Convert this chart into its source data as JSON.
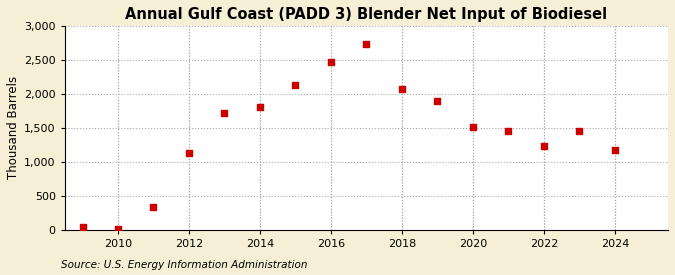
{
  "title": "Annual Gulf Coast (PADD 3) Blender Net Input of Biodiesel",
  "ylabel": "Thousand Barrels",
  "source": "Source: U.S. Energy Information Administration",
  "background_color": "#f5efd5",
  "plot_bg_color": "#ffffff",
  "marker_color": "#cc0000",
  "marker": "s",
  "marker_size": 4,
  "years": [
    2009,
    2010,
    2011,
    2012,
    2013,
    2014,
    2015,
    2016,
    2017,
    2018,
    2019,
    2020,
    2021,
    2022,
    2023,
    2024
  ],
  "values": [
    40,
    10,
    330,
    1130,
    1720,
    1800,
    2130,
    2470,
    2730,
    2070,
    1900,
    1510,
    1450,
    1240,
    1460,
    1170
  ],
  "ylim": [
    0,
    3000
  ],
  "xlim": [
    2008.5,
    2025.5
  ],
  "yticks": [
    0,
    500,
    1000,
    1500,
    2000,
    2500,
    3000
  ],
  "xticks": [
    2010,
    2012,
    2014,
    2016,
    2018,
    2020,
    2022,
    2024
  ],
  "title_fontsize": 10.5,
  "label_fontsize": 8.5,
  "tick_fontsize": 8,
  "source_fontsize": 7.5
}
